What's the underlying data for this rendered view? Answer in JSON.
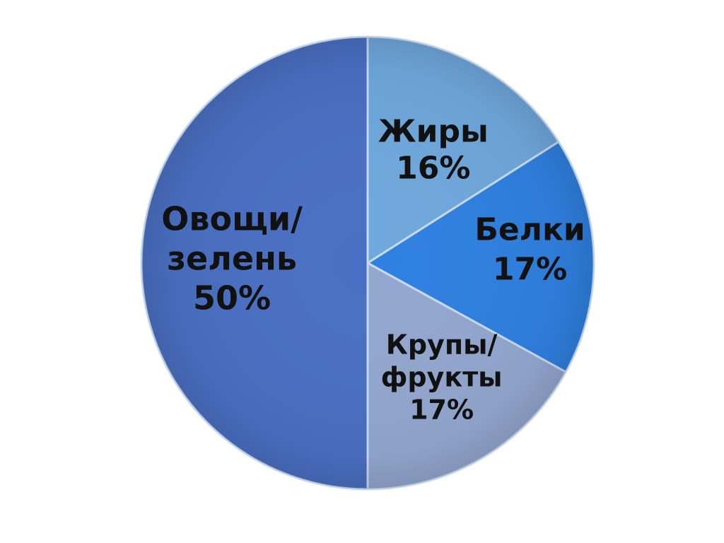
{
  "chart_data": {
    "type": "pie",
    "title": "",
    "slices": [
      {
        "label": [
          "Жиры",
          "16%"
        ],
        "value": 16,
        "color": "#6fa8dc"
      },
      {
        "label": [
          "Белки",
          "17%"
        ],
        "value": 17,
        "color": "#2f80e0"
      },
      {
        "label": [
          "Крупы/",
          "фрукты",
          "17%"
        ],
        "value": 17,
        "color": "#93a7cf"
      },
      {
        "label": [
          "Овощи/",
          "зелень",
          "50%"
        ],
        "value": 50,
        "color": "#4a70c3"
      }
    ],
    "legend": "none",
    "start_angle_deg": 0,
    "direction": "clockwise"
  }
}
